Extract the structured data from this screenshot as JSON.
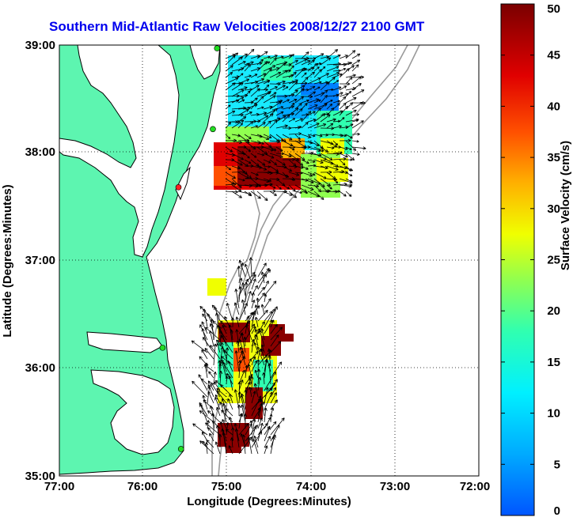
{
  "title": "Southern Mid-Atlantic Raw Velocities 2008/12/27 2100 GMT",
  "axes": {
    "xlabel": "Longitude (Degrees:Minutes)",
    "ylabel": "Latitude (Degrees:Minutes)",
    "x_ticks": [
      "77:00",
      "76:00",
      "75:00",
      "74:00",
      "73:00",
      "72:00"
    ],
    "y_ticks": [
      "39:00",
      "38:00",
      "37:00",
      "36:00",
      "35:00"
    ]
  },
  "colorbar": {
    "label": "Surface Velocity (cm/s)",
    "ticks": [
      "0",
      "5",
      "10",
      "15",
      "20",
      "25",
      "30",
      "35",
      "40",
      "45",
      "50"
    ],
    "min": 0,
    "max": 50
  },
  "colors": {
    "land": "#5df5b0",
    "coast": "#000000",
    "bathymetry": "#9a9a9a",
    "title": "#0000ee",
    "station_green": "#22dd22",
    "station_red": "#ff2222"
  },
  "map": {
    "lon_range": [
      -77,
      -72
    ],
    "lat_range": [
      35,
      39
    ],
    "grid": "dotted",
    "stations": [
      {
        "lon": -75.12,
        "lat": 38.97,
        "status": "green"
      },
      {
        "lon": -75.17,
        "lat": 38.22,
        "status": "green"
      },
      {
        "lon": -75.58,
        "lat": 37.68,
        "status": "red"
      },
      {
        "lon": -75.77,
        "lat": 36.19,
        "status": "green"
      },
      {
        "lon": -75.55,
        "lat": 35.25,
        "status": "green"
      }
    ]
  }
}
